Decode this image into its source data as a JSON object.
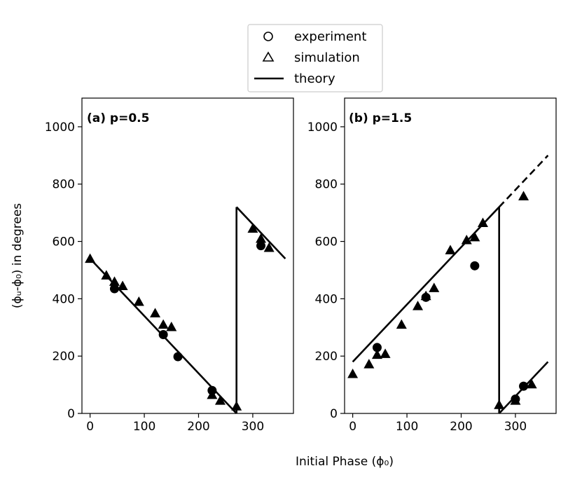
{
  "chart_data": {
    "type": "scatter",
    "xlabel": "Initial Phase (ϕ₀)",
    "ylabel": "(ϕᵤ-ϕ₀) in degrees",
    "legend": {
      "placement": "top-center",
      "entries": [
        {
          "marker": "circle",
          "label": "experiment"
        },
        {
          "marker": "triangle",
          "label": "simulation"
        },
        {
          "marker": "line",
          "label": "theory"
        }
      ]
    },
    "panels": [
      {
        "title": "(a) p=0.5",
        "xlim": [
          -15,
          375
        ],
        "ylim": [
          0,
          1100
        ],
        "xticks": [
          0,
          100,
          200,
          300
        ],
        "yticks": [
          0,
          200,
          400,
          600,
          800,
          1000
        ],
        "experiment": [
          [
            45,
            435
          ],
          [
            135,
            275
          ],
          [
            162,
            198
          ],
          [
            225,
            80
          ],
          [
            315,
            585
          ]
        ],
        "simulation": [
          [
            0,
            540
          ],
          [
            30,
            482
          ],
          [
            45,
            460
          ],
          [
            60,
            445
          ],
          [
            90,
            390
          ],
          [
            120,
            350
          ],
          [
            135,
            310
          ],
          [
            150,
            302
          ],
          [
            225,
            65
          ],
          [
            240,
            45
          ],
          [
            270,
            25
          ],
          [
            300,
            645
          ],
          [
            315,
            610
          ],
          [
            330,
            578
          ]
        ],
        "theory": [
          {
            "points": [
              [
                0,
                540
              ],
              [
                270,
                0
              ]
            ],
            "style": "solid"
          },
          {
            "points": [
              [
                270,
                0
              ],
              [
                270,
                720
              ]
            ],
            "style": "solid"
          },
          {
            "points": [
              [
                270,
                720
              ],
              [
                360,
                540
              ]
            ],
            "style": "solid"
          }
        ]
      },
      {
        "title": "(b) p=1.5",
        "xlim": [
          -15,
          375
        ],
        "ylim": [
          0,
          1100
        ],
        "xticks": [
          0,
          100,
          200,
          300
        ],
        "yticks": [
          0,
          200,
          400,
          600,
          800,
          1000
        ],
        "experiment": [
          [
            45,
            230
          ],
          [
            135,
            405
          ],
          [
            225,
            515
          ],
          [
            300,
            50
          ],
          [
            315,
            95
          ]
        ],
        "simulation": [
          [
            0,
            138
          ],
          [
            30,
            172
          ],
          [
            45,
            205
          ],
          [
            60,
            208
          ],
          [
            90,
            310
          ],
          [
            120,
            375
          ],
          [
            135,
            410
          ],
          [
            150,
            438
          ],
          [
            180,
            570
          ],
          [
            210,
            605
          ],
          [
            225,
            615
          ],
          [
            240,
            665
          ],
          [
            270,
            30
          ],
          [
            300,
            45
          ],
          [
            315,
            758
          ],
          [
            330,
            102
          ]
        ],
        "theory": [
          {
            "points": [
              [
                0,
                180
              ],
              [
                270,
                720
              ]
            ],
            "style": "solid"
          },
          {
            "points": [
              [
                270,
                720
              ],
              [
                360,
                900
              ]
            ],
            "style": "dashed"
          },
          {
            "points": [
              [
                270,
                720
              ],
              [
                270,
                0
              ]
            ],
            "style": "solid"
          },
          {
            "points": [
              [
                270,
                0
              ],
              [
                360,
                180
              ]
            ],
            "style": "solid"
          }
        ]
      }
    ]
  }
}
